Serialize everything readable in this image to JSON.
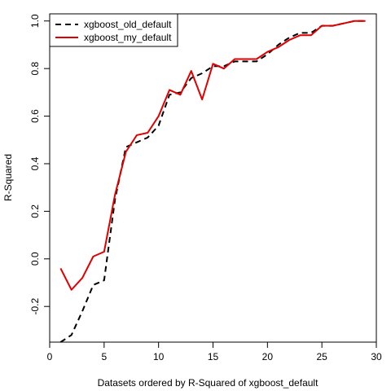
{
  "chart_data": {
    "type": "line",
    "xlabel": "Datasets ordered by R-Squared of xgboost_default",
    "ylabel": "R-Squared",
    "xlim": [
      0,
      30
    ],
    "ylim": [
      -0.35,
      1.03
    ],
    "xticks": [
      0,
      5,
      10,
      15,
      20,
      25,
      30
    ],
    "yticks": [
      -0.2,
      0.0,
      0.2,
      0.4,
      0.6,
      0.8,
      1.0
    ],
    "xtick_labels": [
      "0",
      "5",
      "10",
      "15",
      "20",
      "25",
      "30"
    ],
    "ytick_labels": [
      "-0.2",
      "0.0",
      "0.2",
      "0.4",
      "0.6",
      "0.8",
      "1.0"
    ],
    "grid": false,
    "legend_position": "top-left",
    "x": [
      1,
      2,
      3,
      4,
      5,
      6,
      7,
      8,
      9,
      10,
      11,
      12,
      13,
      14,
      15,
      16,
      17,
      18,
      19,
      20,
      21,
      22,
      23,
      24,
      25,
      26,
      27,
      28,
      29
    ],
    "series": [
      {
        "name": "xgboost_old_default",
        "color": "#000000",
        "dash": "dashed",
        "values": [
          -0.35,
          -0.32,
          -0.22,
          -0.11,
          -0.09,
          0.25,
          0.47,
          0.49,
          0.51,
          0.56,
          0.69,
          0.7,
          0.76,
          0.78,
          0.81,
          0.81,
          0.83,
          0.83,
          0.83,
          0.86,
          0.9,
          0.93,
          0.95,
          0.95,
          0.98,
          0.98,
          0.99,
          1.0,
          1.0
        ]
      },
      {
        "name": "xgboost_my_default",
        "color": "#e00000",
        "dash": "solid",
        "values": [
          -0.04,
          -0.13,
          -0.08,
          0.01,
          0.03,
          0.27,
          0.45,
          0.52,
          0.53,
          0.6,
          0.71,
          0.69,
          0.79,
          0.67,
          0.82,
          0.8,
          0.84,
          0.84,
          0.84,
          0.87,
          0.89,
          0.92,
          0.94,
          0.94,
          0.98,
          0.98,
          0.99,
          1.0,
          1.0
        ]
      }
    ]
  }
}
